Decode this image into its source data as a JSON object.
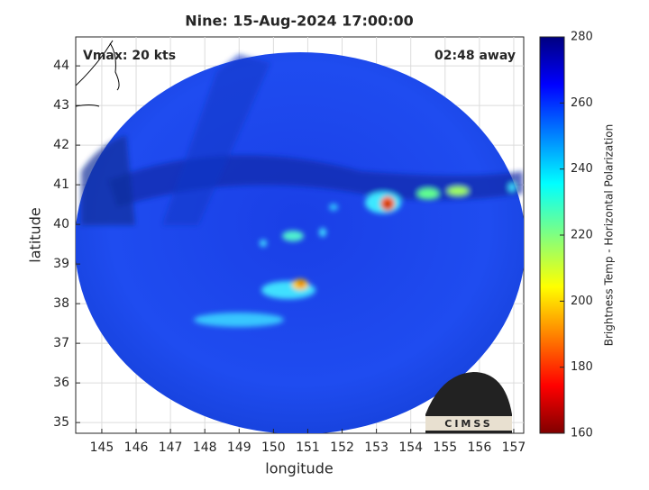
{
  "title": "Nine: 15-Aug-2024 17:00:00",
  "annotations": {
    "left": "Vmax: 20 kts",
    "right": "02:48 away"
  },
  "map": {
    "xlabel": "longitude",
    "ylabel": "latitude",
    "xlim": [
      144.24,
      157.29
    ],
    "ylim": [
      34.73,
      44.73
    ],
    "xticks": [
      145,
      146,
      147,
      148,
      149,
      150,
      151,
      152,
      153,
      154,
      155,
      156,
      157
    ],
    "yticks": [
      35,
      36,
      37,
      38,
      39,
      40,
      41,
      42,
      43,
      44
    ],
    "grid": true
  },
  "colorbar": {
    "label": "Brightness Temp - Horizontal Polarization",
    "lim": [
      160,
      280
    ],
    "ticks": [
      160,
      180,
      200,
      220,
      240,
      260,
      280
    ],
    "colormap": "jet"
  },
  "logo": "CIMSS"
}
